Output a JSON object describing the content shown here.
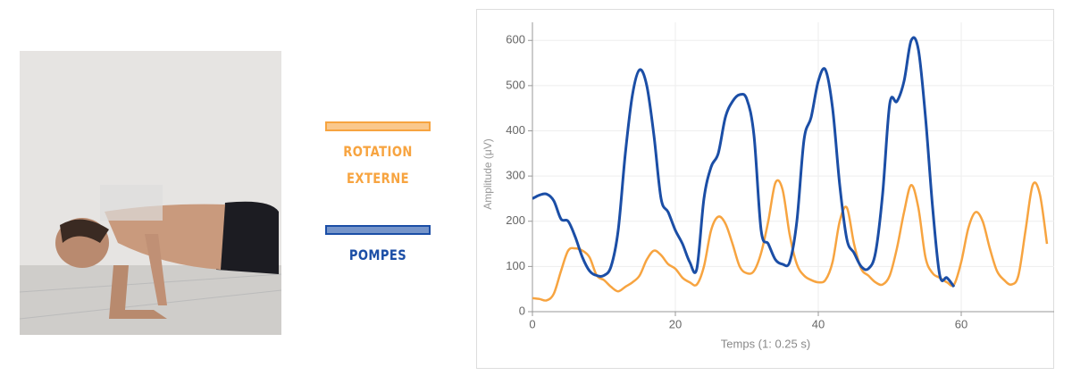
{
  "chart_data": {
    "type": "line",
    "x_label": "Temps  (1: 0.25 s)",
    "y_label": "Amplitude (μV)",
    "x": [
      0,
      1,
      2,
      3,
      4,
      5,
      6,
      7,
      8,
      9,
      10,
      11,
      12,
      13,
      14,
      15,
      16,
      17,
      18,
      19,
      20,
      21,
      22,
      23,
      24,
      25,
      26,
      27,
      28,
      29,
      30,
      31,
      32,
      33,
      34,
      35,
      36,
      37,
      38,
      39,
      40,
      41,
      42,
      43,
      44,
      45,
      46,
      47,
      48,
      49,
      50,
      51,
      52,
      53,
      54,
      55,
      56,
      57,
      58,
      59,
      60,
      61,
      62,
      63,
      64,
      65,
      66,
      67,
      68,
      69,
      70,
      71,
      72
    ],
    "series": [
      {
        "name": "ROTATION EXTERNE",
        "color": "#f7a440",
        "values": [
          30,
          28,
          25,
          40,
          90,
          135,
          140,
          135,
          120,
          80,
          70,
          55,
          45,
          55,
          65,
          80,
          115,
          135,
          125,
          105,
          95,
          75,
          65,
          60,
          100,
          180,
          210,
          195,
          150,
          100,
          85,
          90,
          130,
          200,
          285,
          270,
          170,
          105,
          80,
          70,
          65,
          70,
          110,
          200,
          230,
          150,
          95,
          80,
          65,
          60,
          80,
          140,
          220,
          280,
          230,
          120,
          85,
          75,
          65,
          60,
          110,
          185,
          220,
          200,
          140,
          90,
          70,
          60,
          80,
          180,
          280,
          260,
          150
        ]
      },
      {
        "name": "POMPES",
        "color": "#1b4ea6",
        "values": [
          250,
          258,
          260,
          245,
          205,
          200,
          165,
          120,
          90,
          80,
          80,
          100,
          180,
          350,
          480,
          535,
          500,
          390,
          250,
          220,
          180,
          150,
          110,
          95,
          250,
          320,
          350,
          430,
          465,
          480,
          470,
          390,
          180,
          150,
          115,
          105,
          110,
          200,
          380,
          430,
          510,
          535,
          450,
          280,
          160,
          130,
          100,
          95,
          130,
          260,
          460,
          465,
          510,
          600,
          580,
          430,
          230,
          80,
          75,
          55,
          null,
          null,
          null,
          null,
          null,
          null,
          null,
          null,
          null,
          null,
          null,
          null,
          null
        ]
      }
    ],
    "xlim": [
      0,
      73
    ],
    "ylim": [
      0,
      640
    ],
    "xticks": [
      0,
      20,
      40,
      60
    ],
    "yticks": [
      0,
      100,
      200,
      300,
      400,
      500,
      600
    ],
    "grid": true
  }
}
